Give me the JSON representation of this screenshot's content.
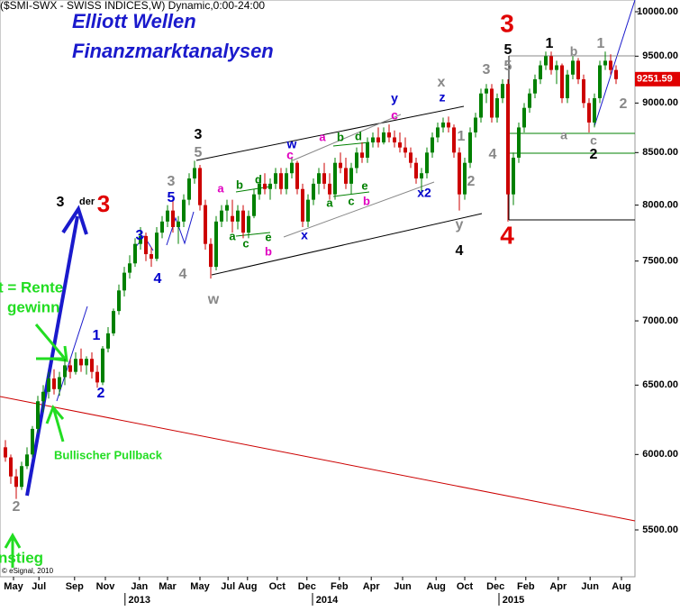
{
  "chart_data": {
    "type": "candlestick",
    "header": "($SMI-SWX - SWISS INDICES,W) Dynamic,0:00-24:00",
    "title": "Elliott Wellen",
    "subtitle": "Finanzmarktanalysen",
    "credit": "© eSignal, 2010",
    "log_scale": true,
    "up_color": "#008000",
    "down_color": "#cc0000",
    "ylim": [
      5130,
      10136
    ],
    "yticks": [
      {
        "value": 5500,
        "label": "5500.00"
      },
      {
        "value": 6000,
        "label": "6000.00"
      },
      {
        "value": 6500,
        "label": "6500.00"
      },
      {
        "value": 7000,
        "label": "7000.00"
      },
      {
        "value": 7500,
        "label": "7500.00"
      },
      {
        "value": 8000,
        "label": "8000.00"
      },
      {
        "value": 8500,
        "label": "8500.00"
      },
      {
        "value": 9000,
        "label": "9000.00"
      },
      {
        "value": 9500,
        "label": "9500.00"
      },
      {
        "value": 10000,
        "label": "10000.00"
      }
    ],
    "xlim": [
      -1,
      116.5
    ],
    "xticks": [
      {
        "value": 1.5,
        "label": "May"
      },
      {
        "value": 6.2,
        "label": "Jul"
      },
      {
        "value": 12.8,
        "label": "Sep"
      },
      {
        "value": 18.5,
        "label": "Nov"
      },
      {
        "value": 24.8,
        "label": "Jan"
      },
      {
        "value": 30,
        "label": "Mar"
      },
      {
        "value": 36,
        "label": "May"
      },
      {
        "value": 41.2,
        "label": "Jul"
      },
      {
        "value": 44.8,
        "label": "Aug"
      },
      {
        "value": 50.3,
        "label": "Oct"
      },
      {
        "value": 55.8,
        "label": "Dec"
      },
      {
        "value": 61.8,
        "label": "Feb"
      },
      {
        "value": 67.7,
        "label": "Apr"
      },
      {
        "value": 73.5,
        "label": "Jun"
      },
      {
        "value": 79.7,
        "label": "Aug"
      },
      {
        "value": 85,
        "label": "Oct"
      },
      {
        "value": 90.7,
        "label": "Dec"
      },
      {
        "value": 96.3,
        "label": "Feb"
      },
      {
        "value": 102.3,
        "label": "Apr"
      },
      {
        "value": 108.2,
        "label": "Jun"
      },
      {
        "value": 114,
        "label": "Aug"
      }
    ],
    "year_ticks": [
      {
        "value": 24.8,
        "label": "2013"
      },
      {
        "value": 59.5,
        "label": "2014"
      },
      {
        "value": 94,
        "label": "2015"
      }
    ],
    "last_price": {
      "value": 9251.59,
      "label": "9251.59"
    },
    "candles": [
      [
        6050,
        6100,
        5950,
        5980
      ],
      [
        5980,
        6000,
        5800,
        5850
      ],
      [
        5850,
        5900,
        5700,
        5780
      ],
      [
        5780,
        5950,
        5760,
        5920
      ],
      [
        5920,
        6050,
        5900,
        6000
      ],
      [
        6000,
        6200,
        5980,
        6180
      ],
      [
        6180,
        6420,
        6150,
        6380
      ],
      [
        6380,
        6500,
        6300,
        6450
      ],
      [
        6450,
        6600,
        6400,
        6550
      ],
      [
        6550,
        6620,
        6430,
        6470
      ],
      [
        6470,
        6600,
        6420,
        6560
      ],
      [
        6560,
        6700,
        6500,
        6650
      ],
      [
        6650,
        6700,
        6550,
        6600
      ],
      [
        6600,
        6750,
        6580,
        6700
      ],
      [
        6700,
        6780,
        6600,
        6650
      ],
      [
        6650,
        6720,
        6580,
        6700
      ],
      [
        6700,
        6750,
        6550,
        6600
      ],
      [
        6600,
        6650,
        6480,
        6520
      ],
      [
        6520,
        6800,
        6500,
        6780
      ],
      [
        6780,
        6950,
        6750,
        6900
      ],
      [
        6900,
        7100,
        6880,
        7080
      ],
      [
        7080,
        7300,
        7050,
        7250
      ],
      [
        7250,
        7450,
        7200,
        7400
      ],
      [
        7400,
        7550,
        7350,
        7480
      ],
      [
        7480,
        7700,
        7450,
        7650
      ],
      [
        7650,
        7800,
        7600,
        7720
      ],
      [
        7720,
        7750,
        7500,
        7560
      ],
      [
        7560,
        7620,
        7450,
        7520
      ],
      [
        7520,
        7800,
        7500,
        7750
      ],
      [
        7750,
        7900,
        7700,
        7850
      ],
      [
        7850,
        8000,
        7800,
        7950
      ],
      [
        7950,
        8050,
        7750,
        7800
      ],
      [
        7800,
        7900,
        7650,
        7850
      ],
      [
        7850,
        8100,
        7800,
        8050
      ],
      [
        8050,
        8300,
        8000,
        8250
      ],
      [
        8250,
        8420,
        8200,
        8350
      ],
      [
        8350,
        8380,
        7950,
        8000
      ],
      [
        8000,
        8050,
        7600,
        7650
      ],
      [
        7650,
        7700,
        7350,
        7450
      ],
      [
        7450,
        7900,
        7420,
        7850
      ],
      [
        7850,
        8000,
        7800,
        7950
      ],
      [
        7950,
        8050,
        7850,
        8000
      ],
      [
        7900,
        8050,
        7750,
        7850
      ],
      [
        7850,
        8000,
        7780,
        7950
      ],
      [
        7950,
        8000,
        7700,
        7750
      ],
      [
        7750,
        7950,
        7700,
        7900
      ],
      [
        7900,
        8150,
        7880,
        8100
      ],
      [
        8100,
        8250,
        8050,
        8200
      ],
      [
        8200,
        8300,
        8100,
        8150
      ],
      [
        8150,
        8250,
        8050,
        8200
      ],
      [
        8200,
        8350,
        8150,
        8300
      ],
      [
        8300,
        8350,
        8100,
        8150
      ],
      [
        8150,
        8350,
        8100,
        8300
      ],
      [
        8300,
        8450,
        8250,
        8400
      ],
      [
        8400,
        8420,
        8100,
        8150
      ],
      [
        8150,
        8200,
        7800,
        7850
      ],
      [
        7850,
        8100,
        7800,
        8050
      ],
      [
        8050,
        8250,
        8000,
        8200
      ],
      [
        8200,
        8350,
        8100,
        8300
      ],
      [
        8300,
        8400,
        8150,
        8200
      ],
      [
        8200,
        8300,
        8050,
        8100
      ],
      [
        8100,
        8450,
        8050,
        8400
      ],
      [
        8400,
        8500,
        8300,
        8350
      ],
      [
        8350,
        8450,
        8150,
        8200
      ],
      [
        8200,
        8400,
        8100,
        8350
      ],
      [
        8350,
        8550,
        8300,
        8500
      ],
      [
        8500,
        8600,
        8400,
        8450
      ],
      [
        8450,
        8650,
        8400,
        8600
      ],
      [
        8600,
        8700,
        8550,
        8650
      ],
      [
        8650,
        8750,
        8550,
        8600
      ],
      [
        8600,
        8750,
        8580,
        8700
      ],
      [
        8700,
        8780,
        8600,
        8650
      ],
      [
        8650,
        8720,
        8550,
        8600
      ],
      [
        8600,
        8700,
        8500,
        8550
      ],
      [
        8550,
        8650,
        8450,
        8500
      ],
      [
        8500,
        8550,
        8350,
        8400
      ],
      [
        8400,
        8450,
        8200,
        8250
      ],
      [
        8250,
        8350,
        8100,
        8300
      ],
      [
        8300,
        8550,
        8250,
        8500
      ],
      [
        8500,
        8700,
        8450,
        8650
      ],
      [
        8650,
        8800,
        8600,
        8750
      ],
      [
        8750,
        8850,
        8700,
        8800
      ],
      [
        8800,
        8860,
        8700,
        8750
      ],
      [
        8750,
        8780,
        8450,
        8500
      ],
      [
        8500,
        8550,
        7950,
        8100
      ],
      [
        8100,
        8450,
        8050,
        8400
      ],
      [
        8400,
        8750,
        8350,
        8700
      ],
      [
        8700,
        8900,
        8650,
        8850
      ],
      [
        8850,
        9150,
        8800,
        9100
      ],
      [
        9100,
        9200,
        9000,
        9150
      ],
      [
        9150,
        9200,
        8800,
        8850
      ],
      [
        8850,
        9100,
        8800,
        9050
      ],
      [
        9050,
        9250,
        9000,
        9200
      ],
      [
        9200,
        9250,
        7850,
        8100
      ],
      [
        8100,
        8500,
        8000,
        8450
      ],
      [
        8450,
        8800,
        8400,
        8750
      ],
      [
        8750,
        9000,
        8700,
        8950
      ],
      [
        8950,
        9150,
        8900,
        9100
      ],
      [
        9100,
        9300,
        9050,
        9250
      ],
      [
        9250,
        9450,
        9200,
        9400
      ],
      [
        9400,
        9550,
        9350,
        9500
      ],
      [
        9500,
        9550,
        9300,
        9350
      ],
      [
        9350,
        9450,
        9200,
        9400
      ],
      [
        9400,
        9420,
        9000,
        9050
      ],
      [
        9050,
        9350,
        9000,
        9300
      ],
      [
        9300,
        9500,
        9250,
        9450
      ],
      [
        9450,
        9480,
        9200,
        9250
      ],
      [
        9250,
        9300,
        8950,
        9000
      ],
      [
        9000,
        9050,
        8700,
        8800
      ],
      [
        8800,
        9100,
        8750,
        9050
      ],
      [
        9050,
        9450,
        9000,
        9400
      ],
      [
        9400,
        9550,
        9350,
        9450
      ],
      [
        9450,
        9520,
        9300,
        9350
      ],
      [
        9350,
        9400,
        9200,
        9251.59
      ]
    ],
    "annotations": [
      {
        "text": "3",
        "color": "#000000"
      },
      {
        "text": "5",
        "color": "#888888"
      },
      {
        "text": "3",
        "color": "#888888"
      },
      {
        "text": "5",
        "color": "#0000cc"
      },
      {
        "text": "3",
        "color": "#0000cc"
      },
      {
        "text": "4",
        "color": "#0000cc"
      },
      {
        "text": "4",
        "color": "#888888"
      },
      {
        "text": "w",
        "color": "#888888"
      },
      {
        "text": "1",
        "color": "#0000cc"
      },
      {
        "text": "2",
        "color": "#0000cc"
      },
      {
        "text": "a",
        "color": "#e000c0"
      },
      {
        "text": "b",
        "color": "#008000"
      },
      {
        "text": "d",
        "color": "#008000"
      },
      {
        "text": "a",
        "color": "#008000"
      },
      {
        "text": "c",
        "color": "#008000"
      },
      {
        "text": "e",
        "color": "#008000"
      },
      {
        "text": "b",
        "color": "#e000c0"
      },
      {
        "text": "w",
        "color": "#0000cc"
      },
      {
        "text": "c",
        "color": "#e000c0"
      },
      {
        "text": "x",
        "color": "#0000cc"
      },
      {
        "text": "a",
        "color": "#e000c0"
      },
      {
        "text": "b",
        "color": "#008000"
      },
      {
        "text": "d",
        "color": "#008000"
      },
      {
        "text": "a",
        "color": "#008000"
      },
      {
        "text": "c",
        "color": "#008000"
      },
      {
        "text": "e",
        "color": "#008000"
      },
      {
        "text": "b",
        "color": "#e000c0"
      },
      {
        "text": "y",
        "color": "#0000cc"
      },
      {
        "text": "c",
        "color": "#e000c0"
      },
      {
        "text": "x2",
        "color": "#0000cc"
      },
      {
        "text": "x",
        "color": "#888888"
      },
      {
        "text": "z",
        "color": "#0000cc"
      },
      {
        "text": "1",
        "color": "#888888"
      },
      {
        "text": "2",
        "color": "#888888"
      },
      {
        "text": "y",
        "color": "#888888"
      },
      {
        "text": "4",
        "color": "#000000"
      },
      {
        "text": "3",
        "color": "#888888"
      },
      {
        "text": "4",
        "color": "#888888"
      },
      {
        "text": "5",
        "color": "#000000"
      },
      {
        "text": "5",
        "color": "#888888"
      },
      {
        "text": "3",
        "color": "#e00000"
      },
      {
        "text": "4",
        "color": "#e00000"
      },
      {
        "text": "1",
        "color": "#000000"
      },
      {
        "text": "b",
        "color": "#888888"
      },
      {
        "text": "1",
        "color": "#888888"
      },
      {
        "text": "a",
        "color": "#888888"
      },
      {
        "text": "c",
        "color": "#888888"
      },
      {
        "text": "2",
        "color": "#000000"
      },
      {
        "text": "2",
        "color": "#888888"
      },
      {
        "text": "3",
        "color": "#000000"
      },
      {
        "text": "der",
        "color": "#000000"
      },
      {
        "text": "3",
        "color": "#e00000"
      },
      {
        "text": "2",
        "color": "#888888"
      },
      {
        "text": "t = Rente",
        "color": "#22dd22"
      },
      {
        "text": "gewinn",
        "color": "#22dd22"
      },
      {
        "text": "Bullischer Pullback",
        "color": "#22dd22"
      },
      {
        "text": "nstieg",
        "color": "#22dd22"
      }
    ]
  }
}
